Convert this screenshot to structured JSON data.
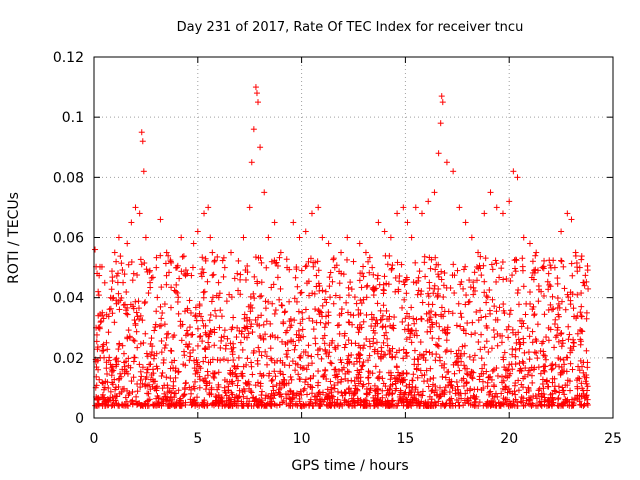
{
  "chart_data": {
    "type": "scatter",
    "title": "Day 231 of 2017, Rate Of TEC Index for receiver tncu",
    "xlabel": "GPS time / hours",
    "ylabel": "ROTI / TECUs",
    "xlim": [
      0,
      25
    ],
    "ylim": [
      0,
      0.12
    ],
    "xticks": [
      0,
      5,
      10,
      15,
      20,
      25
    ],
    "yticks": [
      0,
      0.02,
      0.04,
      0.06,
      0.08,
      0.1,
      0.12
    ],
    "xtick_labels": [
      "0",
      "5",
      "10",
      "15",
      "20",
      "25"
    ],
    "ytick_labels": [
      "0",
      "0.02",
      "0.04",
      "0.06",
      "0.08",
      "0.1",
      "0.12"
    ],
    "grid": true,
    "marker": "plus",
    "color": "#ff0000",
    "series": [
      {
        "x": [
          0.05,
          0.1,
          0.2,
          0.3,
          0.4,
          0.6,
          0.8,
          1.0,
          1.2,
          1.4,
          1.6,
          1.8,
          2.0,
          2.2,
          2.3,
          2.35,
          2.4,
          2.5,
          2.7,
          3.0,
          3.2,
          3.5,
          3.7,
          4.0,
          4.2,
          4.5,
          4.8,
          5.0,
          5.3,
          5.5,
          5.6,
          5.7,
          6.0,
          6.3,
          6.6,
          6.9,
          7.2,
          7.5,
          7.6,
          7.7,
          7.8,
          7.85,
          7.9,
          8.0,
          8.2,
          8.4,
          8.7,
          9.0,
          9.3,
          9.6,
          9.9,
          10.2,
          10.5,
          10.8,
          11.0,
          11.3,
          11.6,
          11.9,
          12.2,
          12.5,
          12.8,
          13.1,
          13.4,
          13.7,
          14.0,
          14.3,
          14.6,
          14.9,
          15.1,
          15.3,
          15.5,
          15.8,
          16.1,
          16.4,
          16.6,
          16.7,
          16.75,
          16.8,
          17.0,
          17.3,
          17.6,
          17.9,
          18.2,
          18.5,
          18.8,
          19.1,
          19.4,
          19.7,
          20.0,
          20.2,
          20.4,
          20.7,
          21.0,
          21.3,
          21.6,
          21.9,
          22.2,
          22.5,
          22.8,
          23.0,
          23.2,
          23.4,
          23.6
        ],
        "y": [
          0.056,
          0.03,
          0.042,
          0.02,
          0.035,
          0.025,
          0.04,
          0.055,
          0.06,
          0.045,
          0.058,
          0.065,
          0.07,
          0.068,
          0.095,
          0.092,
          0.082,
          0.06,
          0.045,
          0.05,
          0.066,
          0.055,
          0.052,
          0.05,
          0.06,
          0.048,
          0.058,
          0.062,
          0.068,
          0.07,
          0.06,
          0.055,
          0.045,
          0.05,
          0.055,
          0.048,
          0.06,
          0.07,
          0.085,
          0.096,
          0.11,
          0.108,
          0.105,
          0.09,
          0.075,
          0.06,
          0.065,
          0.055,
          0.05,
          0.065,
          0.06,
          0.062,
          0.068,
          0.07,
          0.06,
          0.058,
          0.05,
          0.055,
          0.06,
          0.052,
          0.058,
          0.055,
          0.05,
          0.065,
          0.062,
          0.06,
          0.068,
          0.07,
          0.065,
          0.06,
          0.07,
          0.068,
          0.072,
          0.075,
          0.088,
          0.098,
          0.107,
          0.105,
          0.085,
          0.082,
          0.07,
          0.065,
          0.06,
          0.055,
          0.068,
          0.075,
          0.07,
          0.068,
          0.072,
          0.082,
          0.08,
          0.06,
          0.058,
          0.055,
          0.05,
          0.048,
          0.05,
          0.062,
          0.068,
          0.066,
          0.055,
          0.05,
          0.045
        ]
      }
    ]
  }
}
